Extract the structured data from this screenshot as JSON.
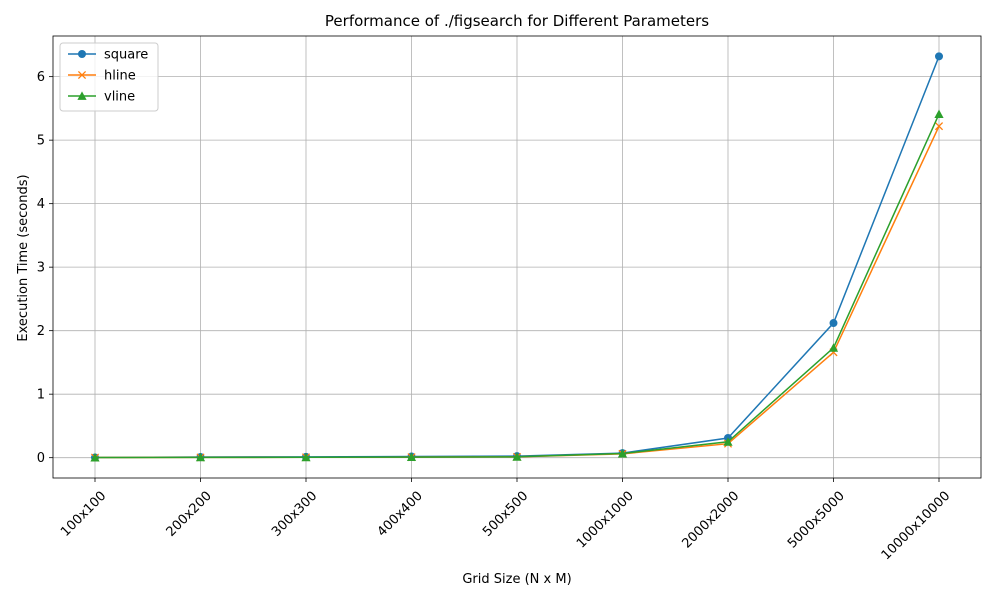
{
  "chart_data": {
    "type": "line",
    "title": "Performance of ./figsearch for Different Parameters",
    "xlabel": "Grid Size (N x M)",
    "ylabel": "Execution Time (seconds)",
    "categories": [
      "100x100",
      "200x200",
      "300x300",
      "400x400",
      "500x500",
      "1000x1000",
      "2000x2000",
      "5000x5000",
      "10000x10000"
    ],
    "ylim": [
      -0.32,
      6.64
    ],
    "yticks": [
      0,
      1,
      2,
      3,
      4,
      5,
      6
    ],
    "grid": true,
    "legend_position": "top-left",
    "series": [
      {
        "name": "square",
        "color": "#1f77b4",
        "marker": "circle",
        "values": [
          0.003,
          0.011,
          0.013,
          0.018,
          0.025,
          0.072,
          0.31,
          2.12,
          6.32
        ]
      },
      {
        "name": "hline",
        "color": "#ff7f0e",
        "marker": "x",
        "values": [
          0.002,
          0.004,
          0.006,
          0.008,
          0.012,
          0.06,
          0.22,
          1.66,
          5.22
        ]
      },
      {
        "name": "vline",
        "color": "#2ca02c",
        "marker": "triangle",
        "values": [
          0.002,
          0.005,
          0.006,
          0.009,
          0.014,
          0.065,
          0.25,
          1.73,
          5.41
        ]
      }
    ]
  }
}
